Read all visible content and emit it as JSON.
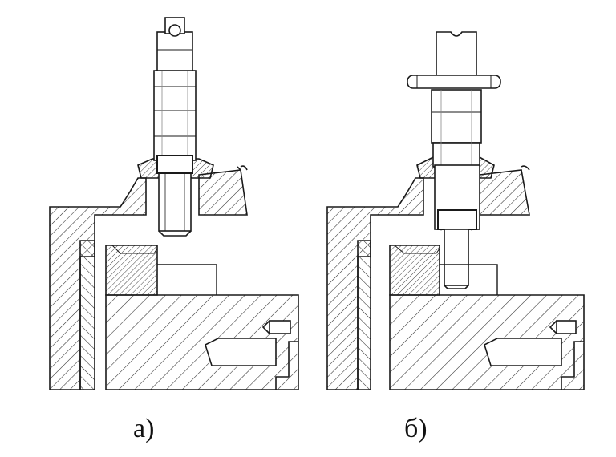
{
  "figure": {
    "panels": [
      {
        "id": "a",
        "caption": "а)"
      },
      {
        "id": "b",
        "caption": "б)"
      }
    ],
    "colors": {
      "line": "#1a1a1a",
      "hatch": "#2b2b2b",
      "background": "#ffffff",
      "ghost_text": "#c9c9c9"
    }
  }
}
